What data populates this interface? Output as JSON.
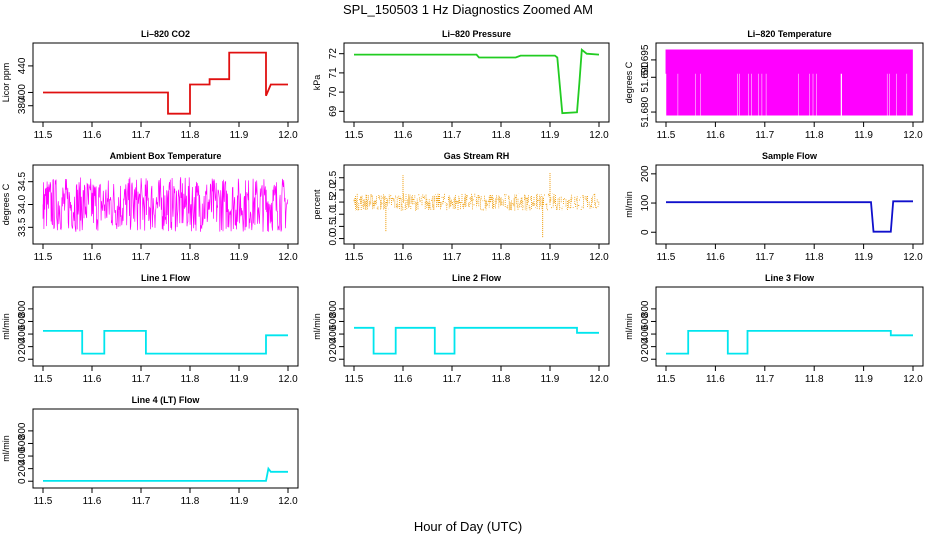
{
  "figure": {
    "title": "SPL_150503  1 Hz Diagnostics Zoomed AM",
    "xlabel": "Hour of Day (UTC)"
  },
  "chart_data": [
    {
      "type": "line",
      "title": "Li–820 CO2",
      "ylabel": "Licor ppm",
      "color": "#e01010",
      "xlim": [
        11.5,
        12.0
      ],
      "xticks": [
        "11.5",
        "11.6",
        "11.7",
        "11.8",
        "11.9",
        "12.0"
      ],
      "ylim": [
        360,
        470
      ],
      "yticks": [
        "380",
        "400",
        "440"
      ],
      "series": [
        {
          "x": [
            11.5,
            11.755,
            11.755,
            11.8,
            11.8,
            11.84,
            11.84,
            11.88,
            11.88,
            11.955,
            11.955,
            11.965,
            12.0
          ],
          "y": [
            400,
            400,
            368,
            368,
            412,
            412,
            420,
            420,
            460,
            460,
            395,
            412,
            412
          ]
        }
      ]
    },
    {
      "type": "line",
      "title": "Li–820 Pressure",
      "ylabel": "kPa",
      "color": "#22cc22",
      "xlim": [
        11.5,
        12.0
      ],
      "xticks": [
        "11.5",
        "11.6",
        "11.7",
        "11.8",
        "11.9",
        "12.0"
      ],
      "ylim": [
        68.6,
        72.4
      ],
      "yticks": [
        "69",
        "70",
        "71",
        "72"
      ],
      "series": [
        {
          "x": [
            11.5,
            11.75,
            11.755,
            11.83,
            11.84,
            11.91,
            11.915,
            11.925,
            11.955,
            11.96,
            11.965,
            11.975,
            12.0
          ],
          "y": [
            71.95,
            71.95,
            71.8,
            71.8,
            71.9,
            71.9,
            71.8,
            68.9,
            68.95,
            70.5,
            72.2,
            72.0,
            71.95
          ]
        }
      ]
    },
    {
      "type": "line",
      "title": "Li–820 Temperature",
      "ylabel": "degrees C",
      "color": "#ff00ff",
      "xlim": [
        11.5,
        12.0
      ],
      "xticks": [
        "11.5",
        "11.6",
        "11.7",
        "11.8",
        "11.9",
        "12.0"
      ],
      "ylim": [
        51.678,
        51.699
      ],
      "yticks": [
        "51.680",
        "51.690",
        "51.695"
      ],
      "series": [
        {
          "name": "",
          "values_min": 51.679,
          "values_max": 51.698,
          "pattern": "dense-oscillation"
        }
      ]
    },
    {
      "type": "line",
      "title": "Ambient Box Temperature",
      "ylabel": "degrees C",
      "color": "#ff00ff",
      "xlim": [
        11.5,
        12.0
      ],
      "xticks": [
        "11.5",
        "11.6",
        "11.7",
        "11.8",
        "11.9",
        "12.0"
      ],
      "ylim": [
        33.2,
        34.8
      ],
      "yticks": [
        "33.5",
        "34.0",
        "34.5"
      ],
      "series": [
        {
          "name": "",
          "values_min": 33.4,
          "values_max": 34.6,
          "pattern": "dense-noise"
        }
      ]
    },
    {
      "type": "scatter",
      "title": "Gas Stream RH",
      "ylabel": "percent",
      "color": "#ee9900",
      "xlim": [
        11.5,
        12.0
      ],
      "xticks": [
        "11.5",
        "11.6",
        "11.7",
        "11.8",
        "11.9",
        "12.0"
      ],
      "ylim": [
        -0.1,
        2.9
      ],
      "yticks": [
        "0.0",
        "0.5",
        "1.0",
        "1.5",
        "2.0",
        "2.5"
      ],
      "series": [
        {
          "name": "",
          "values_min": 0.9,
          "values_max": 2.1,
          "center": 1.5,
          "spikes": [
            [
              11.6,
              2.6
            ],
            [
              11.9,
              2.7
            ],
            [
              11.885,
              0.05
            ],
            [
              11.565,
              0.3
            ]
          ]
        }
      ]
    },
    {
      "type": "line",
      "title": "Sample Flow",
      "ylabel": "ml/min",
      "color": "#1010cc",
      "xlim": [
        11.5,
        12.0
      ],
      "xticks": [
        "11.5",
        "11.6",
        "11.7",
        "11.8",
        "11.9",
        "12.0"
      ],
      "ylim": [
        -30,
        220
      ],
      "yticks": [
        "0",
        "100",
        "200"
      ],
      "series": [
        {
          "x": [
            11.5,
            11.915,
            11.92,
            11.955,
            11.96,
            12.0
          ],
          "y": [
            103,
            103,
            2,
            2,
            106,
            106
          ]
        }
      ]
    },
    {
      "type": "line",
      "title": "Line 1 Flow",
      "ylabel": "ml/min",
      "color": "#00e5ee",
      "xlim": [
        11.5,
        12.0
      ],
      "xticks": [
        "11.5",
        "11.6",
        "11.7",
        "11.8",
        "11.9",
        "12.0"
      ],
      "ylim": [
        -60,
        1100
      ],
      "yticks": [
        "0",
        "200",
        "400",
        "600",
        "800"
      ],
      "series": [
        {
          "x": [
            11.5,
            11.58,
            11.58,
            11.625,
            11.625,
            11.71,
            11.71,
            11.955,
            11.955,
            12.0
          ],
          "y": [
            450,
            450,
            90,
            90,
            450,
            450,
            90,
            90,
            380,
            380
          ]
        }
      ]
    },
    {
      "type": "line",
      "title": "Line 2 Flow",
      "ylabel": "ml/min",
      "color": "#00e5ee",
      "xlim": [
        11.5,
        12.0
      ],
      "xticks": [
        "11.5",
        "11.6",
        "11.7",
        "11.8",
        "11.9",
        "12.0"
      ],
      "ylim": [
        -60,
        1100
      ],
      "yticks": [
        "0",
        "200",
        "400",
        "600",
        "800"
      ],
      "series": [
        {
          "x": [
            11.5,
            11.54,
            11.54,
            11.585,
            11.585,
            11.665,
            11.665,
            11.705,
            11.705,
            11.955,
            11.955,
            12.0
          ],
          "y": [
            500,
            500,
            90,
            90,
            500,
            500,
            90,
            90,
            500,
            500,
            420,
            420
          ]
        }
      ]
    },
    {
      "type": "line",
      "title": "Line 3 Flow",
      "ylabel": "ml/min",
      "color": "#00e5ee",
      "xlim": [
        11.5,
        12.0
      ],
      "xticks": [
        "11.5",
        "11.6",
        "11.7",
        "11.8",
        "11.9",
        "12.0"
      ],
      "ylim": [
        -60,
        1100
      ],
      "yticks": [
        "0",
        "200",
        "400",
        "600",
        "800"
      ],
      "series": [
        {
          "x": [
            11.5,
            11.545,
            11.545,
            11.625,
            11.625,
            11.665,
            11.665,
            11.955,
            11.955,
            12.0
          ],
          "y": [
            90,
            90,
            450,
            450,
            90,
            90,
            450,
            450,
            380,
            380
          ]
        }
      ]
    },
    {
      "type": "line",
      "title": "Line 4 (LT) Flow",
      "ylabel": "ml/min",
      "color": "#00e5ee",
      "xlim": [
        11.5,
        12.0
      ],
      "xticks": [
        "11.5",
        "11.6",
        "11.7",
        "11.8",
        "11.9",
        "12.0"
      ],
      "ylim": [
        -60,
        1100
      ],
      "yticks": [
        "0",
        "200",
        "400",
        "600",
        "800"
      ],
      "series": [
        {
          "x": [
            11.5,
            11.955,
            11.96,
            11.965,
            12.0
          ],
          "y": [
            5,
            5,
            200,
            150,
            150
          ]
        }
      ]
    }
  ]
}
